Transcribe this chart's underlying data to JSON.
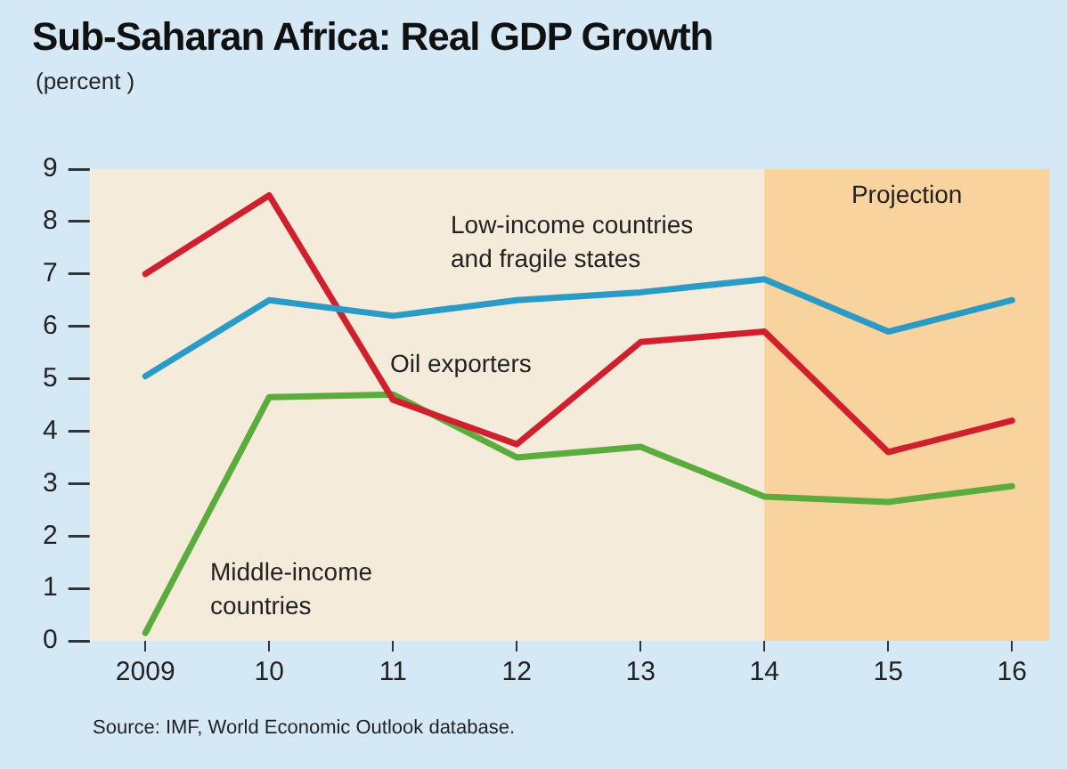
{
  "chart_data": {
    "type": "line",
    "title": "Sub-Saharan Africa: Real GDP Growth",
    "subtitle": "(percent )",
    "x": [
      2009,
      2010,
      2011,
      2012,
      2013,
      2014,
      2015,
      2016
    ],
    "xlim": [
      2008.55,
      2016.3
    ],
    "xticks": [
      2009,
      {
        "value": 2010,
        "label": "10"
      },
      {
        "value": 2011,
        "label": "11"
      },
      {
        "value": 2012,
        "label": "12"
      },
      {
        "value": 2013,
        "label": "13"
      },
      {
        "value": 2014,
        "label": "14"
      },
      {
        "value": 2015,
        "label": "15"
      },
      {
        "value": 2016,
        "label": "16"
      }
    ],
    "ylim": [
      0,
      9
    ],
    "yticks": [
      0,
      1,
      2,
      3,
      4,
      5,
      6,
      7,
      8,
      9
    ],
    "series": [
      {
        "name": "Low-income countries and fragile states",
        "color": "#2a9ac6",
        "values": [
          5.05,
          6.5,
          6.2,
          6.5,
          6.65,
          6.9,
          5.9,
          6.5
        ]
      },
      {
        "name": "Oil exporters",
        "color": "#d0202e",
        "values": [
          7.0,
          8.5,
          4.6,
          3.75,
          5.7,
          5.9,
          3.6,
          4.2
        ]
      },
      {
        "name": "Middle-income countries",
        "color": "#5aac3c",
        "values": [
          0.15,
          4.65,
          4.7,
          3.5,
          3.7,
          2.75,
          2.65,
          2.95
        ]
      }
    ],
    "bands": [
      {
        "axis": "x",
        "from": 2014,
        "to": 2016.3,
        "label": "Projection",
        "color": "#f9d39e"
      }
    ],
    "annotations": [
      "Source: IMF, World Economic Outlook database."
    ],
    "grid": false,
    "legend": false,
    "marker": "none",
    "line_style": "solid"
  }
}
